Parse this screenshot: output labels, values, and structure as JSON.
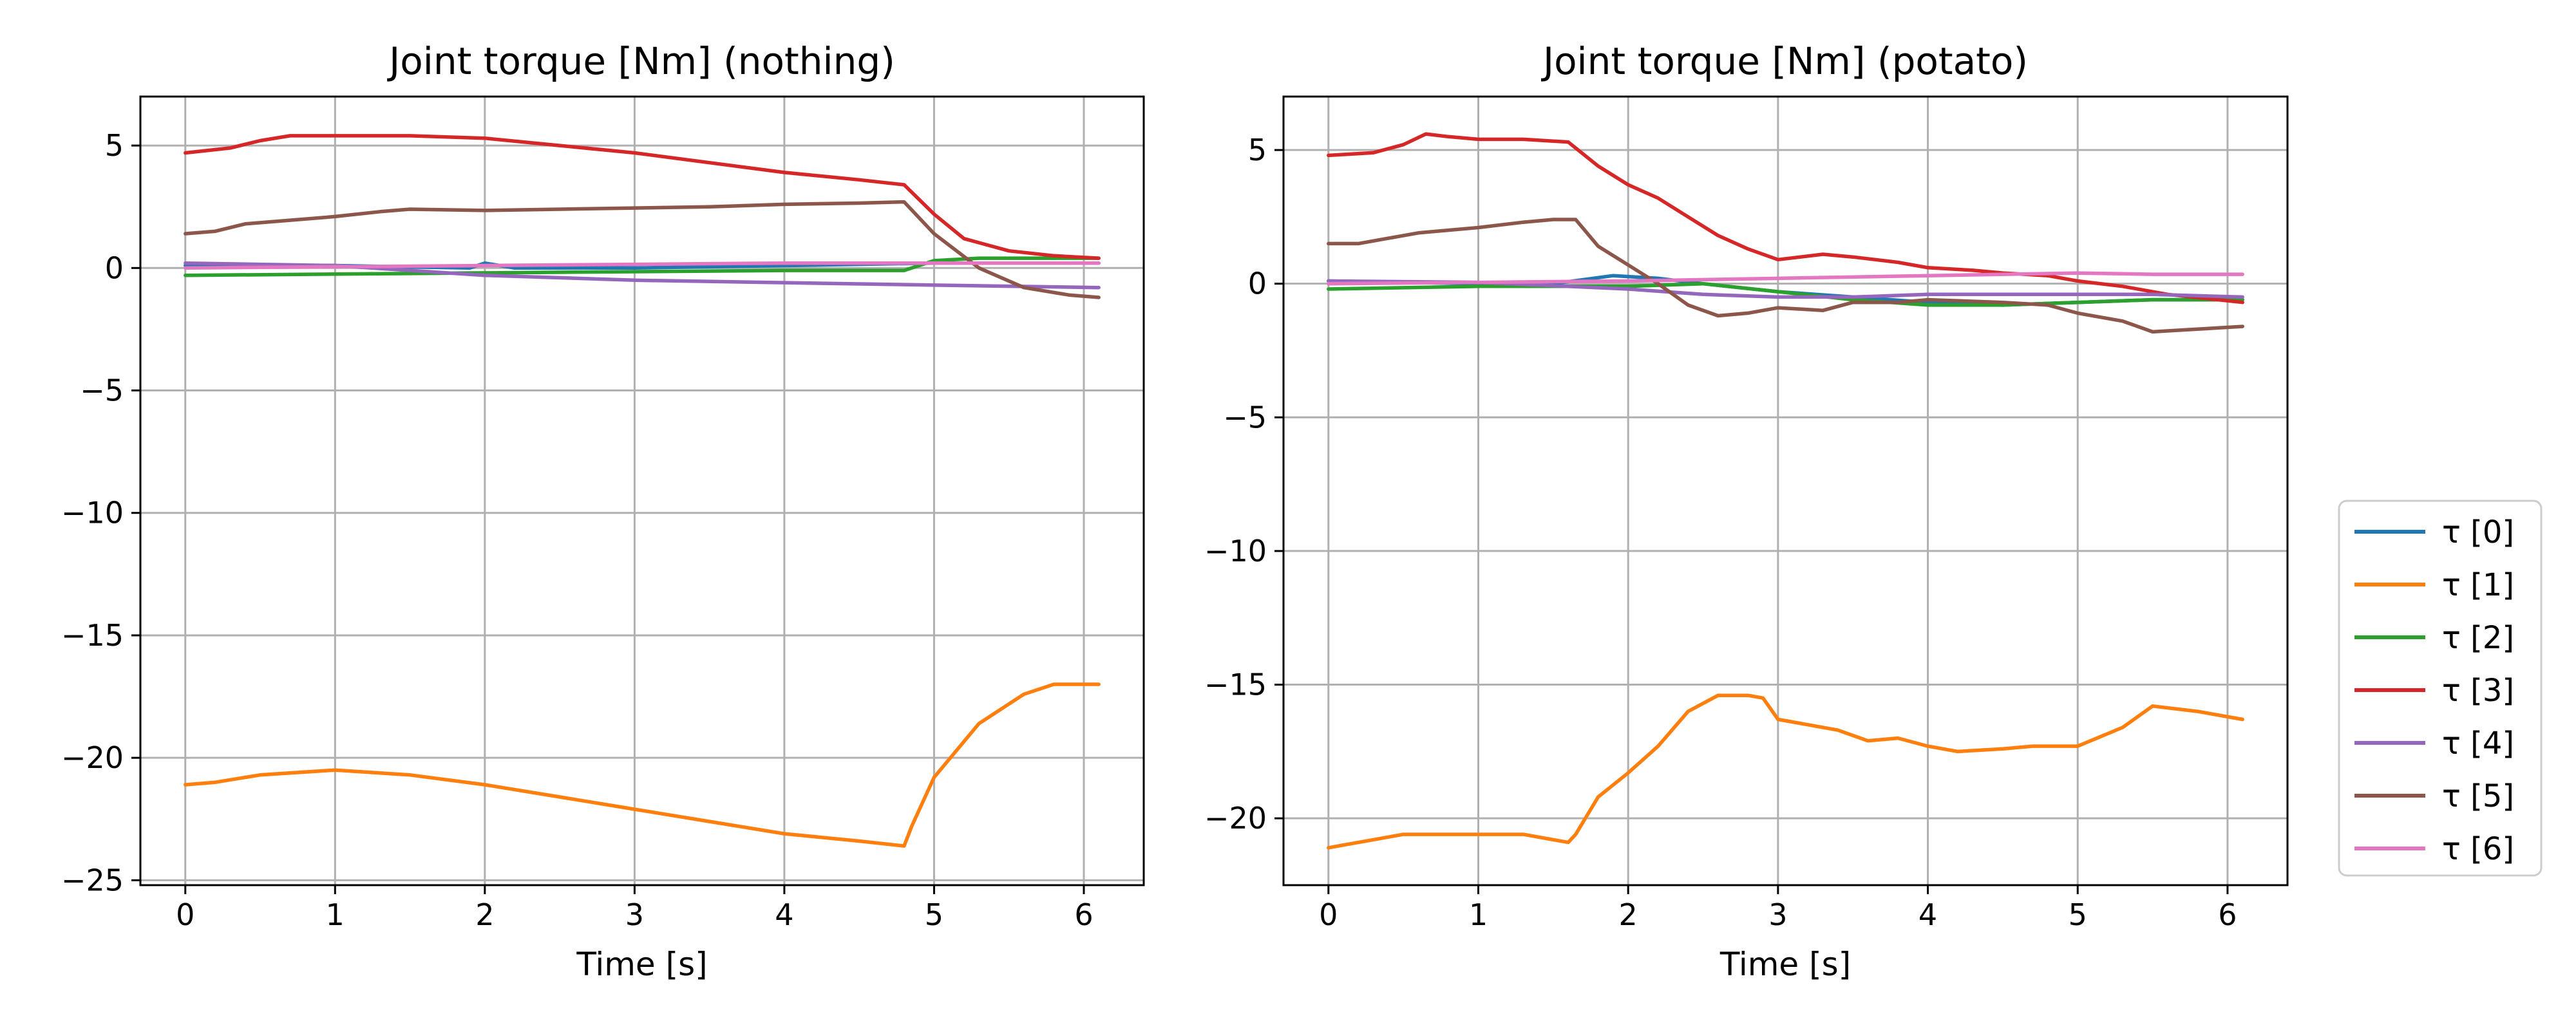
{
  "legend": {
    "placement": "right-bottom",
    "entries": [
      "τ [0]",
      "τ [1]",
      "τ [2]",
      "τ [3]",
      "τ [4]",
      "τ [5]",
      "τ [6]"
    ]
  },
  "colors": {
    "τ [0]": "#1f77b4",
    "τ [1]": "#ff7f0e",
    "τ [2]": "#2ca02c",
    "τ [3]": "#d62728",
    "τ [4]": "#9467bd",
    "τ [5]": "#8c564b",
    "τ [6]": "#e377c2"
  },
  "chart_data": [
    {
      "type": "line",
      "title": "Joint torque [Nm] (nothing)",
      "xlabel": "Time [s]",
      "ylabel": "",
      "xlim": [
        -0.3,
        6.4
      ],
      "ylim": [
        -25.2,
        7.0
      ],
      "xticks": [
        0,
        1,
        2,
        3,
        4,
        5,
        6
      ],
      "xtick_labels": [
        "0",
        "1",
        "2",
        "3",
        "4",
        "5",
        "6"
      ],
      "yticks": [
        -25,
        -20,
        -15,
        -10,
        -5,
        0,
        5
      ],
      "ytick_labels": [
        "−25",
        "−20",
        "−15",
        "−10",
        "−5",
        "0",
        "5"
      ],
      "grid": true,
      "series": [
        {
          "name": "τ [0]",
          "x": [
            0,
            1,
            1.9,
            2,
            2.2,
            3,
            4,
            5,
            6.1
          ],
          "y": [
            0.1,
            0.1,
            0.0,
            0.2,
            0.0,
            0.0,
            0.1,
            0.2,
            0.2
          ]
        },
        {
          "name": "τ [1]",
          "x": [
            0,
            0.2,
            0.5,
            1,
            1.5,
            2,
            2.5,
            3,
            3.5,
            4,
            4.5,
            4.8,
            4.85,
            5,
            5.3,
            5.6,
            5.8,
            6.1
          ],
          "y": [
            -21.1,
            -21.0,
            -20.7,
            -20.5,
            -20.7,
            -21.1,
            -21.6,
            -22.1,
            -22.6,
            -23.1,
            -23.4,
            -23.6,
            -22.8,
            -20.8,
            -18.6,
            -17.4,
            -17.0,
            -17.0
          ]
        },
        {
          "name": "τ [2]",
          "x": [
            0,
            1,
            2,
            3,
            4,
            4.8,
            5,
            5.3,
            6.1
          ],
          "y": [
            -0.3,
            -0.25,
            -0.2,
            -0.15,
            -0.1,
            -0.1,
            0.3,
            0.4,
            0.4
          ]
        },
        {
          "name": "τ [3]",
          "x": [
            0,
            0.3,
            0.5,
            0.7,
            1,
            1.5,
            2,
            2.5,
            3,
            3.5,
            4,
            4.5,
            4.8,
            5,
            5.2,
            5.5,
            5.8,
            6.1
          ],
          "y": [
            4.7,
            4.9,
            5.2,
            5.4,
            5.4,
            5.4,
            5.3,
            5.0,
            4.7,
            4.3,
            3.9,
            3.6,
            3.4,
            2.2,
            1.2,
            0.7,
            0.5,
            0.4
          ]
        },
        {
          "name": "τ [4]",
          "x": [
            0,
            1,
            2,
            3,
            4,
            5,
            6.1
          ],
          "y": [
            0.2,
            0.1,
            -0.3,
            -0.5,
            -0.6,
            -0.7,
            -0.8
          ]
        },
        {
          "name": "τ [5]",
          "x": [
            0,
            0.2,
            0.4,
            0.6,
            1,
            1.3,
            1.5,
            2,
            2.5,
            3,
            3.5,
            4,
            4.5,
            4.8,
            5,
            5.3,
            5.6,
            5.9,
            6.1
          ],
          "y": [
            1.4,
            1.5,
            1.8,
            1.9,
            2.1,
            2.3,
            2.4,
            2.35,
            2.4,
            2.45,
            2.5,
            2.6,
            2.65,
            2.7,
            1.4,
            0.0,
            -0.8,
            -1.1,
            -1.2
          ]
        },
        {
          "name": "τ [6]",
          "x": [
            0,
            1,
            2,
            3,
            4,
            5,
            6.1
          ],
          "y": [
            0.0,
            0.05,
            0.1,
            0.15,
            0.2,
            0.2,
            0.2
          ]
        }
      ]
    },
    {
      "type": "line",
      "title": "Joint torque [Nm] (potato)",
      "xlabel": "Time [s]",
      "ylabel": "",
      "xlim": [
        -0.3,
        6.4
      ],
      "ylim": [
        -22.5,
        7.0
      ],
      "xticks": [
        0,
        1,
        2,
        3,
        4,
        5,
        6
      ],
      "xtick_labels": [
        "0",
        "1",
        "2",
        "3",
        "4",
        "5",
        "6"
      ],
      "yticks": [
        -20,
        -15,
        -10,
        -5,
        0,
        5
      ],
      "ytick_labels": [
        "−20",
        "−15",
        "−10",
        "−5",
        "0",
        "5"
      ],
      "grid": true,
      "series": [
        {
          "name": "τ [0]",
          "x": [
            0,
            1,
            1.5,
            1.9,
            2.2,
            2.5,
            3,
            3.5,
            4,
            4.5,
            5,
            5.5,
            6.1
          ],
          "y": [
            0.1,
            0.0,
            0.0,
            0.3,
            0.2,
            0.0,
            -0.3,
            -0.5,
            -0.7,
            -0.8,
            -0.7,
            -0.6,
            -0.6
          ]
        },
        {
          "name": "τ [1]",
          "x": [
            0,
            0.1,
            0.3,
            0.5,
            1,
            1.3,
            1.6,
            1.65,
            1.8,
            2,
            2.2,
            2.4,
            2.6,
            2.8,
            2.9,
            3,
            3.2,
            3.4,
            3.6,
            3.8,
            4,
            4.2,
            4.5,
            4.7,
            5,
            5.3,
            5.5,
            5.8,
            6.1
          ],
          "y": [
            -21.1,
            -21.0,
            -20.8,
            -20.6,
            -20.6,
            -20.6,
            -20.9,
            -20.6,
            -19.2,
            -18.3,
            -17.3,
            -16.0,
            -15.4,
            -15.4,
            -15.5,
            -16.3,
            -16.5,
            -16.7,
            -17.1,
            -17.0,
            -17.3,
            -17.5,
            -17.4,
            -17.3,
            -17.3,
            -16.6,
            -15.8,
            -16.0,
            -16.3
          ]
        },
        {
          "name": "τ [2]",
          "x": [
            0,
            1,
            2,
            2.5,
            3,
            3.5,
            4,
            4.5,
            5,
            5.5,
            6.1
          ],
          "y": [
            -0.2,
            -0.1,
            -0.1,
            0.0,
            -0.3,
            -0.6,
            -0.8,
            -0.8,
            -0.7,
            -0.6,
            -0.6
          ]
        },
        {
          "name": "τ [3]",
          "x": [
            0,
            0.3,
            0.5,
            0.65,
            0.8,
            1,
            1.3,
            1.6,
            1.8,
            2,
            2.2,
            2.4,
            2.6,
            2.8,
            3,
            3.3,
            3.5,
            3.8,
            4,
            4.3,
            4.5,
            4.8,
            5,
            5.3,
            5.6,
            6.1
          ],
          "y": [
            4.8,
            4.9,
            5.2,
            5.6,
            5.5,
            5.4,
            5.4,
            5.3,
            4.4,
            3.7,
            3.2,
            2.5,
            1.8,
            1.3,
            0.9,
            1.1,
            1.0,
            0.8,
            0.6,
            0.5,
            0.4,
            0.3,
            0.1,
            -0.1,
            -0.4,
            -0.7
          ]
        },
        {
          "name": "τ [4]",
          "x": [
            0,
            1,
            2,
            2.5,
            3,
            3.5,
            4,
            4.5,
            5,
            5.5,
            6.1
          ],
          "y": [
            0.1,
            0.05,
            -0.2,
            -0.4,
            -0.5,
            -0.5,
            -0.4,
            -0.4,
            -0.4,
            -0.4,
            -0.5
          ]
        },
        {
          "name": "τ [5]",
          "x": [
            0,
            0.2,
            0.4,
            0.6,
            1,
            1.3,
            1.5,
            1.65,
            1.8,
            2,
            2.2,
            2.4,
            2.6,
            2.8,
            3,
            3.3,
            3.5,
            3.8,
            4,
            4.5,
            4.8,
            5,
            5.3,
            5.5,
            5.8,
            6.1
          ],
          "y": [
            1.5,
            1.5,
            1.7,
            1.9,
            2.1,
            2.3,
            2.4,
            2.4,
            1.4,
            0.7,
            0.0,
            -0.8,
            -1.2,
            -1.1,
            -0.9,
            -1.0,
            -0.7,
            -0.7,
            -0.6,
            -0.7,
            -0.8,
            -1.1,
            -1.4,
            -1.8,
            -1.7,
            -1.6
          ]
        },
        {
          "name": "τ [6]",
          "x": [
            0,
            1,
            2,
            3,
            4,
            5,
            5.5,
            6.1
          ],
          "y": [
            0.0,
            0.05,
            0.1,
            0.2,
            0.3,
            0.4,
            0.35,
            0.35
          ]
        }
      ]
    }
  ]
}
